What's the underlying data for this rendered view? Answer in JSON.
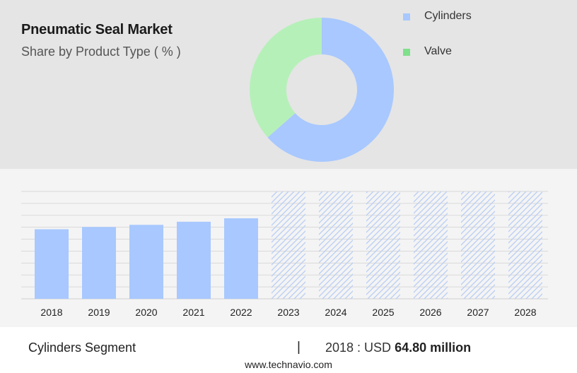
{
  "title": "Pneumatic Seal Market",
  "subtitle": "Share by Product Type ( % )",
  "colors": {
    "cylinders": "#a8c8ff",
    "valve": "#b6f0b9",
    "valve_legend": "#7ee08a",
    "bar": "#a8c8ff",
    "hatch": "#b8cdf5"
  },
  "chart_data": [
    {
      "type": "pie",
      "donut": true,
      "title": "",
      "slices": [
        {
          "name": "Cylinders",
          "value": 63.5
        },
        {
          "name": "Valve",
          "value": 36.5
        }
      ],
      "legend": {
        "position": "top-right",
        "entries": [
          "Cylinders",
          "Valve"
        ]
      }
    },
    {
      "type": "bar",
      "categories": [
        "2018",
        "2019",
        "2020",
        "2021",
        "2022",
        "2023",
        "2024",
        "2025",
        "2026",
        "2027",
        "2028"
      ],
      "values": [
        64.8,
        66.9,
        68.9,
        71.8,
        75.0,
        null,
        null,
        null,
        null,
        null,
        null
      ],
      "forecast_from": "2023",
      "ylim": [
        0,
        100
      ],
      "grid": true,
      "xlabel": "",
      "ylabel": ""
    }
  ],
  "footer": {
    "segment": "Cylinders Segment",
    "separator": "|",
    "year_label": "2018 : USD",
    "value": "64.80 million",
    "source": "www.technavio.com"
  }
}
